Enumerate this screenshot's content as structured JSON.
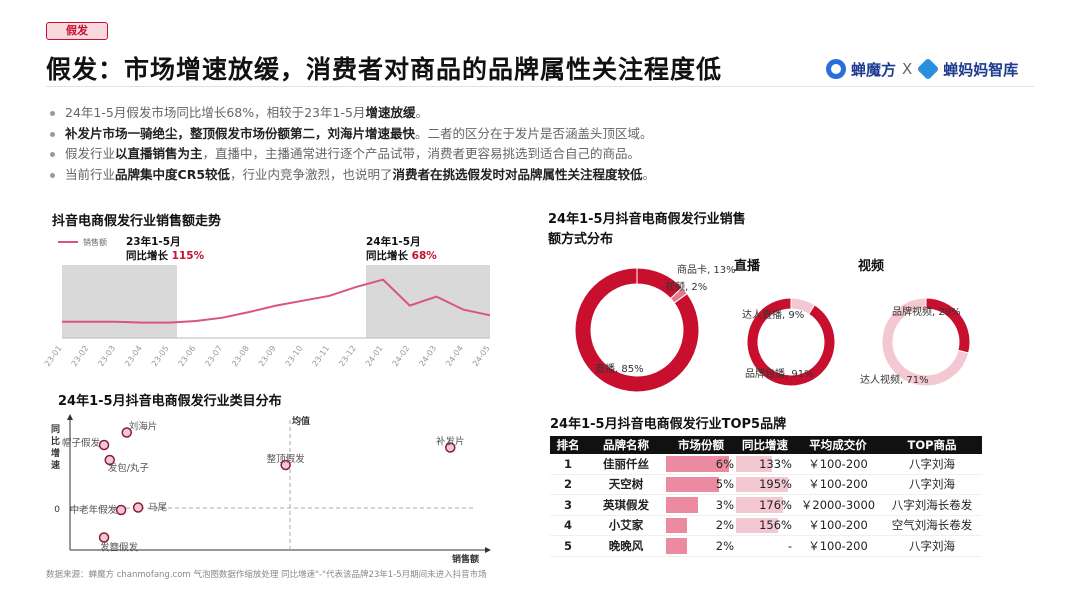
{
  "header": {
    "tag": "假发",
    "title": "假发：市场增速放缓，消费者对商品的品牌属性关注程度低",
    "logo_left": "蝉魔方",
    "logo_sep": "X",
    "logo_right": "蝉妈妈智库"
  },
  "bullets": [
    {
      "pre": "24年1-5月假发市场同比增长68%，相较于23年1-5月",
      "bold": "增速放缓",
      "post": "。"
    },
    {
      "pre": "",
      "bold": "补发片市场一骑绝尘，整顶假发市场份额第二，刘海片增速最快",
      "post": "。二者的区分在于发片是否涵盖头顶区域。"
    },
    {
      "pre": "假发行业",
      "bold": "以直播销售为主",
      "post": "，直播中，主播通常进行逐个产品试带，消费者更容易挑选到适合自己的商品。"
    },
    {
      "pre": "当前行业",
      "bold": "品牌集中度CR5较低",
      "post": "，行业内竞争激烈，也说明了",
      "bold2": "消费者在挑选假发时对品牌属性关注程度较低",
      "post2": "。"
    }
  ],
  "chart_data": [
    {
      "type": "line",
      "title": "抖音电商假发行业销售额走势",
      "legend": "销售额",
      "x": [
        "23-01",
        "23-02",
        "23-03",
        "23-04",
        "23-05",
        "23-06",
        "23-07",
        "23-08",
        "23-09",
        "23-10",
        "23-11",
        "23-12",
        "24-01",
        "24-02",
        "24-03",
        "24-04",
        "24-05"
      ],
      "values": [
        20,
        20,
        20,
        19,
        19,
        21,
        25,
        32,
        40,
        46,
        52,
        63,
        72,
        40,
        51,
        35,
        28
      ],
      "annotations": [
        {
          "label": "23年1-5月",
          "sub": "同比增长 ",
          "value": "115%"
        },
        {
          "label": "24年1-5月",
          "sub": "同比增长 ",
          "value": "68%"
        }
      ]
    },
    {
      "type": "scatter",
      "title": "24年1-5月抖音电商假发行业类目分布",
      "xlabel": "销售额",
      "ylabel": "同比增速",
      "ref_label": "均值",
      "zero_label": "0",
      "points": [
        {
          "name": "刘海片",
          "x": 1.0,
          "y": 3.2
        },
        {
          "name": "帽子假发",
          "x": 0.6,
          "y": 2.7
        },
        {
          "name": "发包/丸子",
          "x": 0.7,
          "y": 2.1
        },
        {
          "name": "整顶假发",
          "x": 3.8,
          "y": 1.9
        },
        {
          "name": "补发片",
          "x": 6.7,
          "y": 2.6
        },
        {
          "name": "中老年假发",
          "x": 0.9,
          "y": 0.1
        },
        {
          "name": "马尾",
          "x": 1.2,
          "y": 0.2
        },
        {
          "name": "发簪假发",
          "x": 0.6,
          "y": -1.0
        }
      ]
    },
    {
      "type": "pie",
      "title": "24年1-5月抖音电商假发行业销售额方式分布",
      "slices": [
        {
          "label": "直播, 85%",
          "value": 85
        },
        {
          "label": "商品卡, 13%",
          "value": 13
        },
        {
          "label": "视频, 2%",
          "value": 2
        }
      ]
    },
    {
      "type": "pie",
      "title": "直播",
      "slices": [
        {
          "label": "品牌自播, 91%",
          "value": 91
        },
        {
          "label": "达人直播, 9%",
          "value": 9
        }
      ]
    },
    {
      "type": "pie",
      "title": "视频",
      "slices": [
        {
          "label": "达人视频, 71%",
          "value": 71
        },
        {
          "label": "品牌视频, 29%",
          "value": 29
        }
      ]
    },
    {
      "type": "table",
      "title": "24年1-5月抖音电商假发行业TOP5品牌",
      "columns": [
        "排名",
        "品牌名称",
        "市场份额",
        "同比增速",
        "平均成交价",
        "TOP商品"
      ],
      "rows": [
        {
          "rank": "1",
          "brand": "佳丽仟丝",
          "share": "6%",
          "share_value": 6,
          "growth": "133%",
          "growth_value": 133,
          "price": "￥100-200",
          "top": "八字刘海"
        },
        {
          "rank": "2",
          "brand": "天空树",
          "share": "5%",
          "share_value": 5,
          "growth": "195%",
          "growth_value": 195,
          "price": "￥100-200",
          "top": "八字刘海"
        },
        {
          "rank": "3",
          "brand": "英琪假发",
          "share": "3%",
          "share_value": 3,
          "growth": "176%",
          "growth_value": 176,
          "price": "￥2000-3000",
          "top": "八字刘海长卷发"
        },
        {
          "rank": "4",
          "brand": "小艾家",
          "share": "2%",
          "share_value": 2,
          "growth": "156%",
          "growth_value": 156,
          "price": "￥100-200",
          "top": "空气刘海长卷发"
        },
        {
          "rank": "5",
          "brand": "晚晚风",
          "share": "2%",
          "share_value": 2,
          "growth": "-",
          "growth_value": 0,
          "price": "￥100-200",
          "top": "八字刘海"
        }
      ]
    }
  ],
  "footer": "数据来源：蝉魔方 chanmofang.com 气泡图数据作缩放处理  同比增速\"-\"代表该品牌23年1-5月期间未进入抖音市场",
  "colors": {
    "accent": "#c8102e",
    "pink": "#e8849a",
    "light_pink": "#f3c8d2",
    "shade": "#d9d9d9"
  }
}
